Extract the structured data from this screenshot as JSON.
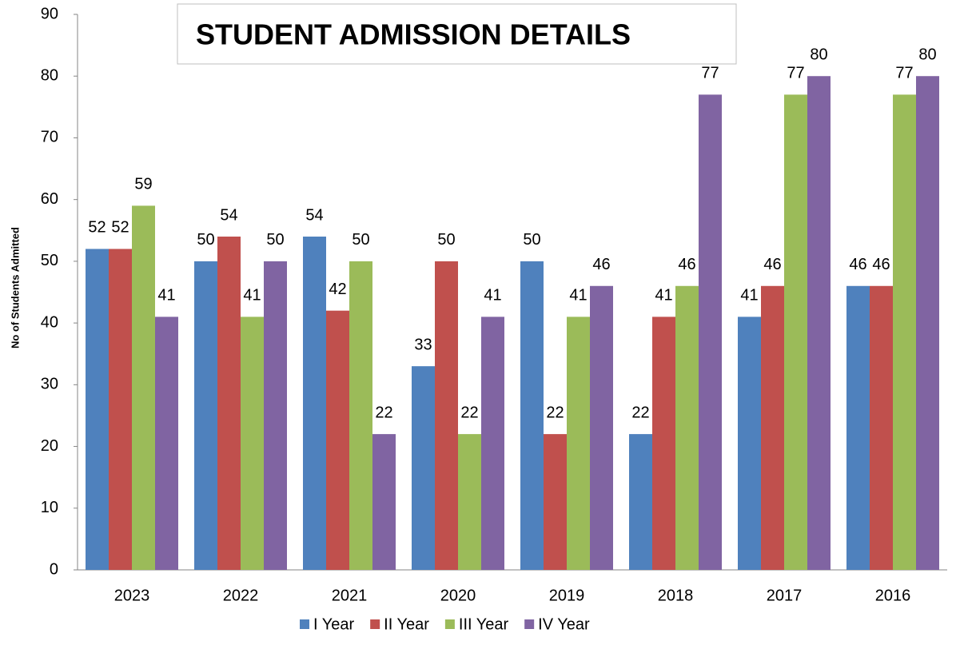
{
  "chart_data": {
    "type": "bar",
    "title": "STUDENT ADMISSION DETAILS",
    "y_label": "No of Students Admitted",
    "categories": [
      "2023",
      "2022",
      "2021",
      "2020",
      "2019",
      "2018",
      "2017",
      "2016"
    ],
    "series": [
      {
        "name": "I Year",
        "color": "#4f81bd",
        "values": [
          52,
          50,
          54,
          33,
          50,
          22,
          41,
          46
        ]
      },
      {
        "name": "II Year",
        "color": "#c0504d",
        "values": [
          52,
          54,
          42,
          50,
          22,
          41,
          46,
          46
        ]
      },
      {
        "name": "III Year",
        "color": "#9bbb59",
        "values": [
          59,
          41,
          50,
          22,
          41,
          46,
          77,
          77
        ]
      },
      {
        "name": "IV Year",
        "color": "#8064a2",
        "values": [
          41,
          50,
          22,
          41,
          46,
          77,
          80,
          80
        ]
      }
    ],
    "ylim": [
      0,
      90
    ],
    "yticks": [
      0,
      10,
      20,
      30,
      40,
      50,
      60,
      70,
      80,
      90
    ],
    "grid": false,
    "legend": "bottom"
  }
}
